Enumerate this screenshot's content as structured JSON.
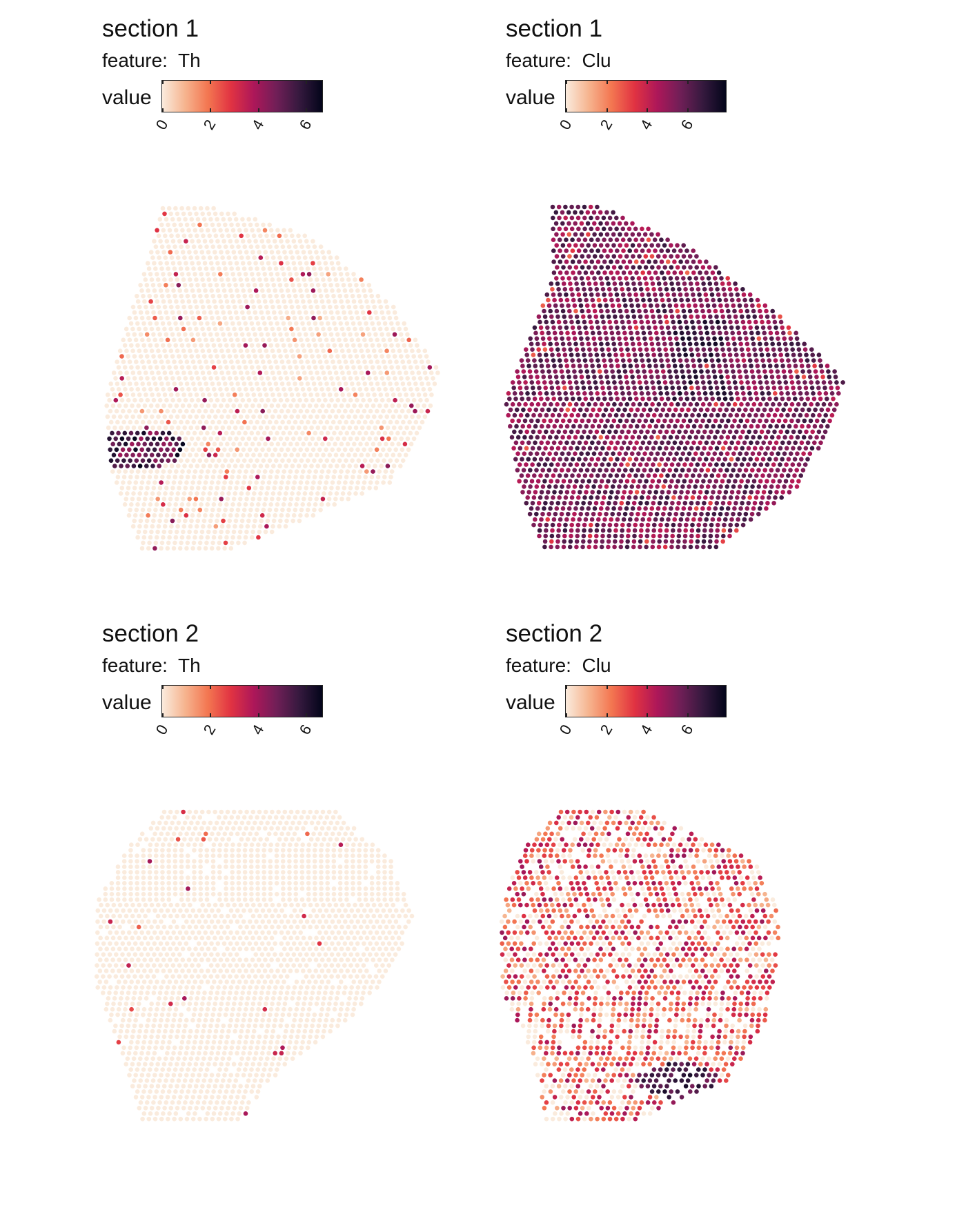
{
  "colorbar": {
    "ticks": [
      0,
      2,
      4,
      6
    ],
    "colors": [
      "#faebdd",
      "#f6b48f",
      "#f37651",
      "#e13342",
      "#ad1759",
      "#701f57",
      "#35193e",
      "#03051a"
    ]
  },
  "chart_data": [
    {
      "type": "scatter",
      "title": "section 1",
      "feature_label": "feature:",
      "feature": "Th",
      "legend_title": "value",
      "value_range": [
        0,
        6.7
      ],
      "color_ticks": [
        0,
        2,
        4,
        6
      ],
      "pattern": "mostly 0 across the section; isolated spots 1-4; dense cluster of high values (5-7) at lower left"
    },
    {
      "type": "scatter",
      "title": "section 1",
      "feature_label": "feature:",
      "feature": "Clu",
      "legend_title": "value",
      "value_range": [
        0,
        7.9
      ],
      "color_ticks": [
        0,
        2,
        4,
        6
      ],
      "pattern": "uniformly high values (about 4-7) across the whole section"
    },
    {
      "type": "scatter",
      "title": "section 2",
      "feature_label": "feature:",
      "feature": "Th",
      "legend_title": "value",
      "value_range": [
        0,
        6.7
      ],
      "color_ticks": [
        0,
        2,
        4,
        6
      ],
      "pattern": "nearly all spots 0; a handful of isolated spots 2-4"
    },
    {
      "type": "scatter",
      "title": "section 2",
      "feature_label": "feature:",
      "feature": "Clu",
      "legend_title": "value",
      "value_range": [
        0,
        7.9
      ],
      "color_ticks": [
        0,
        2,
        4,
        6
      ],
      "pattern": "mixed values 0-5 across section; high-value cluster (6-7) near lower center"
    }
  ]
}
